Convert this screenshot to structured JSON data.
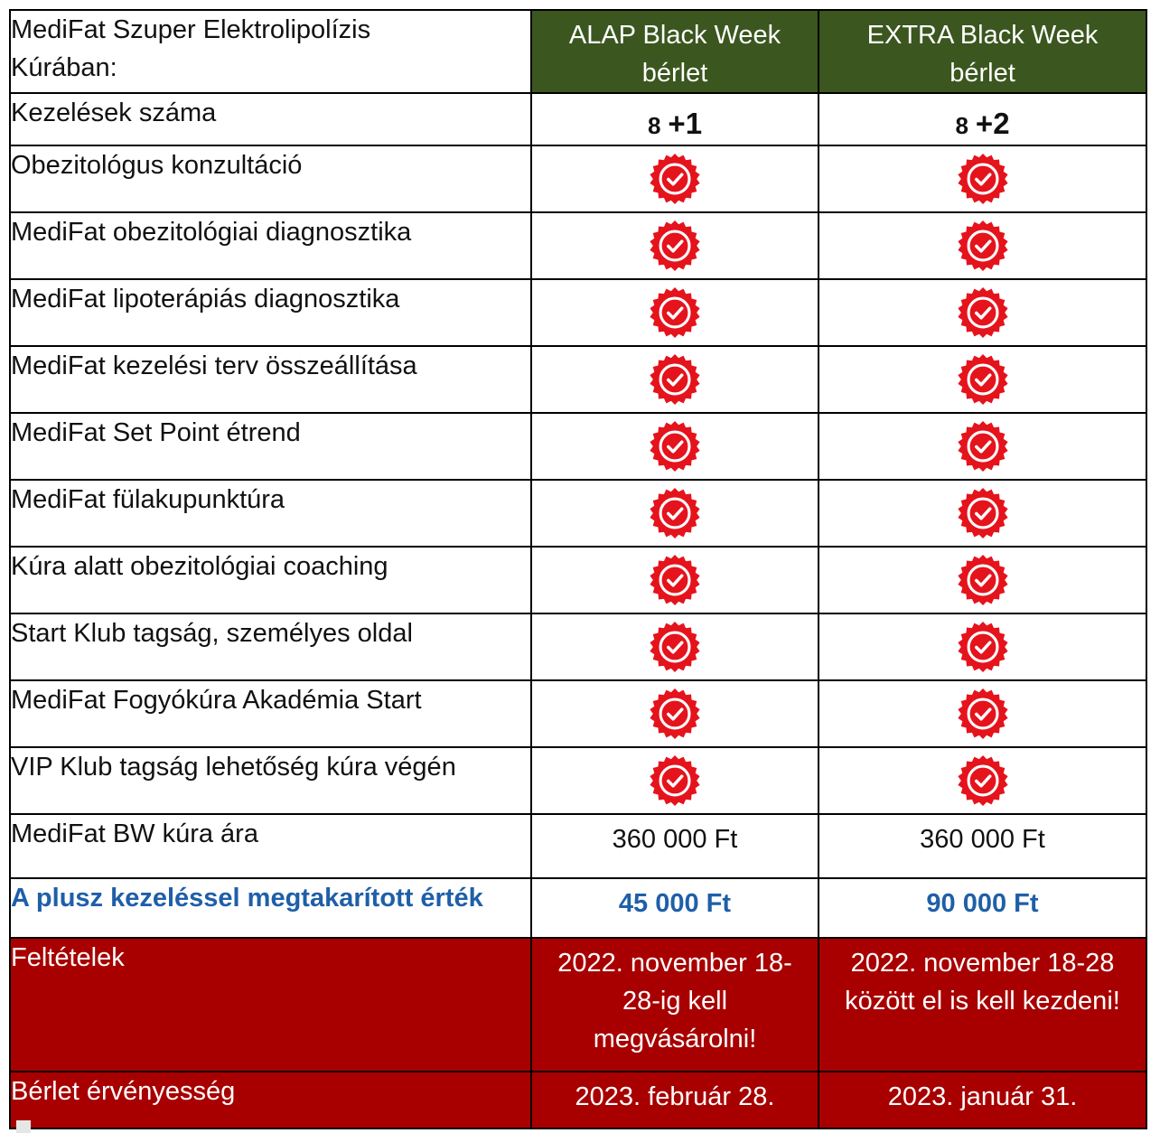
{
  "header": {
    "label_line1": "MediFat Szuper Elektrolipolízis",
    "label_line2": "Kúrában:",
    "col1_line1": "ALAP Black Week",
    "col1_line2": "bérlet",
    "col2_line1": "EXTRA Black Week",
    "col2_line2": "bérlet",
    "header_color": "#3b561f"
  },
  "treatments": {
    "label": "Kezelések száma",
    "alap_base": "8",
    "alap_plus": "+1",
    "extra_base": "8",
    "extra_plus": "+2"
  },
  "features": [
    "Obezitológus konzultáció",
    "MediFat obezitológiai diagnosztika",
    "MediFat lipoterápiás diagnosztika",
    "MediFat kezelési terv összeállítása",
    "MediFat Set Point étrend",
    "MediFat fülakupunktúra",
    "Kúra alatt obezitológiai coaching",
    "Start Klub tagság, személyes oldal",
    "MediFat Fogyókúra Akadémia Start",
    "VIP Klub tagság lehetőség kúra végén"
  ],
  "included_icon": "red-seal-check-icon",
  "price": {
    "label": "MediFat BW kúra ára",
    "alap": "360 000 Ft",
    "extra": "360 000 Ft"
  },
  "savings": {
    "label": "A plusz kezeléssel megtakarított érték",
    "alap": "45 000 Ft",
    "extra": "90 000 Ft",
    "color": "#1f5fa8"
  },
  "conditions": {
    "label": "Feltételek",
    "alap_lines": [
      "2022. november 18-",
      "28-ig kell",
      "megvásárolni!"
    ],
    "extra_lines": [
      "2022. november 18-28",
      "között el is kell kezdeni!"
    ]
  },
  "validity": {
    "label": "Bérlet érvényesség",
    "alap": "2023. február 28.",
    "extra": "2023. január 31."
  },
  "accent_red": "#a80000"
}
